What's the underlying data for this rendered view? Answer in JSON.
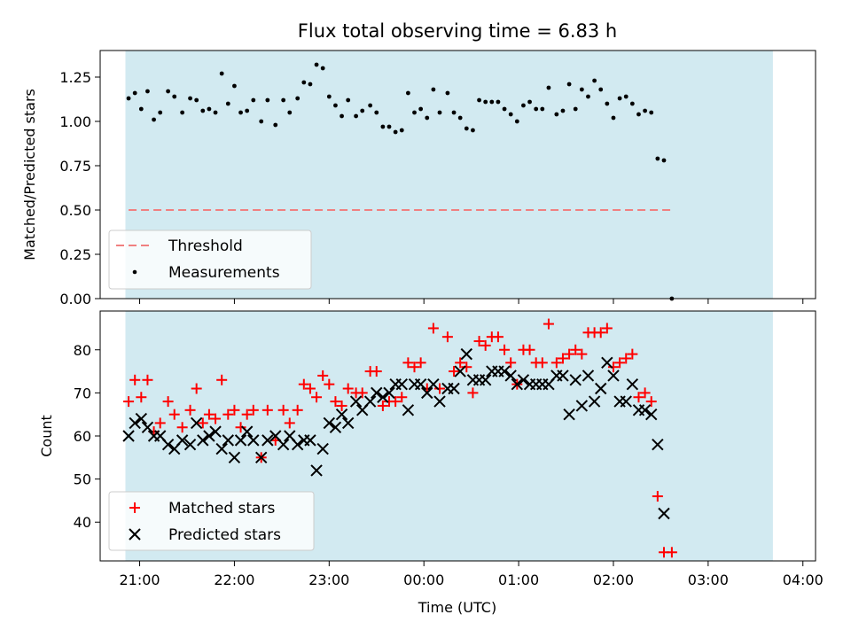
{
  "chart_data": [
    {
      "type": "scatter",
      "title": "Flux total observing time = 6.83 h",
      "ylabel": "Matched/Predicted stars",
      "xlabel": "",
      "xlim": [
        "20:35",
        "04:08"
      ],
      "ylim": [
        0,
        1.4
      ],
      "yticks": [
        0,
        0.25,
        0.5,
        0.75,
        1.0,
        1.25
      ],
      "ytick_labels": [
        "0.00",
        "0.25",
        "0.50",
        "0.75",
        "1.00",
        "1.25"
      ],
      "shaded_interval": {
        "start": "20:51",
        "end": "03:41",
        "color": "#add8e6"
      },
      "threshold": {
        "name": "Threshold",
        "value": 0.5,
        "color": "#f08080",
        "style": "dashed"
      },
      "legend_location": "lower-left",
      "series": [
        {
          "name": "Measurements",
          "marker": "dot",
          "color": "#000000",
          "points": [
            [
              "20:53",
              1.13
            ],
            [
              "20:57",
              1.16
            ],
            [
              "21:01",
              1.07
            ],
            [
              "21:05",
              1.17
            ],
            [
              "21:09",
              1.01
            ],
            [
              "21:13",
              1.05
            ],
            [
              "21:18",
              1.17
            ],
            [
              "21:22",
              1.14
            ],
            [
              "21:27",
              1.05
            ],
            [
              "21:32",
              1.13
            ],
            [
              "21:36",
              1.12
            ],
            [
              "21:40",
              1.06
            ],
            [
              "21:44",
              1.07
            ],
            [
              "21:48",
              1.05
            ],
            [
              "21:52",
              1.27
            ],
            [
              "21:56",
              1.1
            ],
            [
              "22:00",
              1.2
            ],
            [
              "22:04",
              1.05
            ],
            [
              "22:08",
              1.06
            ],
            [
              "22:12",
              1.12
            ],
            [
              "22:17",
              1.0
            ],
            [
              "22:21",
              1.12
            ],
            [
              "22:26",
              0.98
            ],
            [
              "22:31",
              1.12
            ],
            [
              "22:35",
              1.05
            ],
            [
              "22:40",
              1.13
            ],
            [
              "22:44",
              1.22
            ],
            [
              "22:48",
              1.21
            ],
            [
              "22:52",
              1.32
            ],
            [
              "22:56",
              1.3
            ],
            [
              "23:00",
              1.14
            ],
            [
              "23:04",
              1.09
            ],
            [
              "23:08",
              1.03
            ],
            [
              "23:12",
              1.12
            ],
            [
              "23:17",
              1.03
            ],
            [
              "23:21",
              1.06
            ],
            [
              "23:26",
              1.09
            ],
            [
              "23:30",
              1.05
            ],
            [
              "23:34",
              0.97
            ],
            [
              "23:38",
              0.97
            ],
            [
              "23:42",
              0.94
            ],
            [
              "23:46",
              0.95
            ],
            [
              "23:50",
              1.16
            ],
            [
              "23:54",
              1.05
            ],
            [
              "23:58",
              1.07
            ],
            [
              "00:02",
              1.02
            ],
            [
              "00:06",
              1.18
            ],
            [
              "00:10",
              1.05
            ],
            [
              "00:15",
              1.16
            ],
            [
              "00:19",
              1.05
            ],
            [
              "00:23",
              1.02
            ],
            [
              "00:27",
              0.96
            ],
            [
              "00:31",
              0.95
            ],
            [
              "00:35",
              1.12
            ],
            [
              "00:39",
              1.11
            ],
            [
              "00:43",
              1.11
            ],
            [
              "00:47",
              1.11
            ],
            [
              "00:51",
              1.07
            ],
            [
              "00:55",
              1.04
            ],
            [
              "00:59",
              1.0
            ],
            [
              "01:03",
              1.09
            ],
            [
              "01:07",
              1.11
            ],
            [
              "01:11",
              1.07
            ],
            [
              "01:15",
              1.07
            ],
            [
              "01:19",
              1.19
            ],
            [
              "01:24",
              1.04
            ],
            [
              "01:28",
              1.06
            ],
            [
              "01:32",
              1.21
            ],
            [
              "01:36",
              1.07
            ],
            [
              "01:40",
              1.18
            ],
            [
              "01:44",
              1.14
            ],
            [
              "01:48",
              1.23
            ],
            [
              "01:52",
              1.18
            ],
            [
              "01:56",
              1.1
            ],
            [
              "02:00",
              1.02
            ],
            [
              "02:04",
              1.13
            ],
            [
              "02:08",
              1.14
            ],
            [
              "02:12",
              1.1
            ],
            [
              "02:16",
              1.04
            ],
            [
              "02:20",
              1.06
            ],
            [
              "02:24",
              1.05
            ],
            [
              "02:28",
              0.79
            ],
            [
              "02:32",
              0.78
            ],
            [
              "02:37",
              0.0
            ]
          ]
        }
      ]
    },
    {
      "type": "scatter",
      "title": "",
      "ylabel": "Count",
      "xlabel": "Time (UTC)",
      "xlim": [
        "20:35",
        "04:08"
      ],
      "ylim": [
        31,
        89
      ],
      "yticks": [
        40,
        50,
        60,
        70,
        80
      ],
      "ytick_labels": [
        "40",
        "50",
        "60",
        "70",
        "80"
      ],
      "xtick_labels": [
        "21:00",
        "22:00",
        "23:00",
        "00:00",
        "01:00",
        "02:00",
        "03:00",
        "04:00"
      ],
      "shaded_interval": {
        "start": "20:51",
        "end": "03:41",
        "color": "#add8e6"
      },
      "legend_location": "lower-left",
      "series": [
        {
          "name": "Matched stars",
          "marker": "plus",
          "color": "#ff0000",
          "points": [
            [
              "20:53",
              68
            ],
            [
              "20:57",
              73
            ],
            [
              "21:01",
              69
            ],
            [
              "21:05",
              73
            ],
            [
              "21:09",
              61
            ],
            [
              "21:13",
              63
            ],
            [
              "21:18",
              68
            ],
            [
              "21:22",
              65
            ],
            [
              "21:27",
              62
            ],
            [
              "21:32",
              66
            ],
            [
              "21:36",
              71
            ],
            [
              "21:40",
              63
            ],
            [
              "21:44",
              65
            ],
            [
              "21:48",
              64
            ],
            [
              "21:52",
              73
            ],
            [
              "21:56",
              65
            ],
            [
              "22:00",
              66
            ],
            [
              "22:04",
              62
            ],
            [
              "22:08",
              65
            ],
            [
              "22:12",
              66
            ],
            [
              "22:17",
              55
            ],
            [
              "22:21",
              66
            ],
            [
              "22:26",
              59
            ],
            [
              "22:31",
              66
            ],
            [
              "22:35",
              63
            ],
            [
              "22:40",
              66
            ],
            [
              "22:44",
              72
            ],
            [
              "22:48",
              71
            ],
            [
              "22:52",
              69
            ],
            [
              "22:56",
              74
            ],
            [
              "23:00",
              72
            ],
            [
              "23:04",
              68
            ],
            [
              "23:08",
              67
            ],
            [
              "23:12",
              71
            ],
            [
              "23:17",
              70
            ],
            [
              "23:21",
              70
            ],
            [
              "23:26",
              75
            ],
            [
              "23:30",
              75
            ],
            [
              "23:34",
              67
            ],
            [
              "23:38",
              68
            ],
            [
              "23:42",
              68
            ],
            [
              "23:46",
              69
            ],
            [
              "23:50",
              77
            ],
            [
              "23:54",
              76
            ],
            [
              "23:58",
              77
            ],
            [
              "00:02",
              71
            ],
            [
              "00:06",
              85
            ],
            [
              "00:10",
              71
            ],
            [
              "00:15",
              83
            ],
            [
              "00:19",
              75
            ],
            [
              "00:23",
              77
            ],
            [
              "00:27",
              76
            ],
            [
              "00:31",
              70
            ],
            [
              "00:35",
              82
            ],
            [
              "00:39",
              81
            ],
            [
              "00:43",
              83
            ],
            [
              "00:47",
              83
            ],
            [
              "00:51",
              80
            ],
            [
              "00:55",
              77
            ],
            [
              "00:59",
              72
            ],
            [
              "01:03",
              80
            ],
            [
              "01:07",
              80
            ],
            [
              "01:11",
              77
            ],
            [
              "01:15",
              77
            ],
            [
              "01:19",
              86
            ],
            [
              "01:24",
              77
            ],
            [
              "01:28",
              78
            ],
            [
              "01:32",
              79
            ],
            [
              "01:36",
              80
            ],
            [
              "01:40",
              79
            ],
            [
              "01:44",
              84
            ],
            [
              "01:48",
              84
            ],
            [
              "01:52",
              84
            ],
            [
              "01:56",
              85
            ],
            [
              "02:00",
              76
            ],
            [
              "02:04",
              77
            ],
            [
              "02:08",
              78
            ],
            [
              "02:12",
              79
            ],
            [
              "02:16",
              69
            ],
            [
              "02:20",
              70
            ],
            [
              "02:24",
              68
            ],
            [
              "02:28",
              46
            ],
            [
              "02:32",
              33
            ],
            [
              "02:37",
              33
            ]
          ]
        },
        {
          "name": "Predicted stars",
          "marker": "cross",
          "color": "#000000",
          "points": [
            [
              "20:53",
              60
            ],
            [
              "20:57",
              63
            ],
            [
              "21:01",
              64
            ],
            [
              "21:05",
              62
            ],
            [
              "21:09",
              60
            ],
            [
              "21:13",
              60
            ],
            [
              "21:18",
              58
            ],
            [
              "21:22",
              57
            ],
            [
              "21:27",
              59
            ],
            [
              "21:32",
              58
            ],
            [
              "21:36",
              63
            ],
            [
              "21:40",
              59
            ],
            [
              "21:44",
              60
            ],
            [
              "21:48",
              61
            ],
            [
              "21:52",
              57
            ],
            [
              "21:56",
              59
            ],
            [
              "22:00",
              55
            ],
            [
              "22:04",
              59
            ],
            [
              "22:08",
              61
            ],
            [
              "22:12",
              59
            ],
            [
              "22:17",
              55
            ],
            [
              "22:21",
              59
            ],
            [
              "22:26",
              60
            ],
            [
              "22:31",
              58
            ],
            [
              "22:35",
              60
            ],
            [
              "22:40",
              58
            ],
            [
              "22:44",
              59
            ],
            [
              "22:48",
              59
            ],
            [
              "22:52",
              52
            ],
            [
              "22:56",
              57
            ],
            [
              "23:00",
              63
            ],
            [
              "23:04",
              62
            ],
            [
              "23:08",
              65
            ],
            [
              "23:12",
              63
            ],
            [
              "23:17",
              68
            ],
            [
              "23:21",
              66
            ],
            [
              "23:26",
              68
            ],
            [
              "23:30",
              70
            ],
            [
              "23:34",
              69
            ],
            [
              "23:38",
              70
            ],
            [
              "23:42",
              72
            ],
            [
              "23:46",
              72
            ],
            [
              "23:50",
              66
            ],
            [
              "23:54",
              72
            ],
            [
              "23:58",
              72
            ],
            [
              "00:02",
              70
            ],
            [
              "00:06",
              72
            ],
            [
              "00:10",
              68
            ],
            [
              "00:15",
              71
            ],
            [
              "00:19",
              71
            ],
            [
              "00:23",
              75
            ],
            [
              "00:27",
              79
            ],
            [
              "00:31",
              73
            ],
            [
              "00:35",
              73
            ],
            [
              "00:39",
              73
            ],
            [
              "00:43",
              75
            ],
            [
              "00:47",
              75
            ],
            [
              "00:51",
              75
            ],
            [
              "00:55",
              74
            ],
            [
              "00:59",
              72
            ],
            [
              "01:03",
              73
            ],
            [
              "01:07",
              72
            ],
            [
              "01:11",
              72
            ],
            [
              "01:15",
              72
            ],
            [
              "01:19",
              72
            ],
            [
              "01:24",
              74
            ],
            [
              "01:28",
              74
            ],
            [
              "01:32",
              65
            ],
            [
              "01:36",
              73
            ],
            [
              "01:40",
              67
            ],
            [
              "01:44",
              74
            ],
            [
              "01:48",
              68
            ],
            [
              "01:52",
              71
            ],
            [
              "01:56",
              77
            ],
            [
              "02:00",
              74
            ],
            [
              "02:04",
              68
            ],
            [
              "02:08",
              68
            ],
            [
              "02:12",
              72
            ],
            [
              "02:16",
              66
            ],
            [
              "02:20",
              66
            ],
            [
              "02:24",
              65
            ],
            [
              "02:28",
              58
            ],
            [
              "02:32",
              42
            ]
          ]
        }
      ]
    }
  ]
}
